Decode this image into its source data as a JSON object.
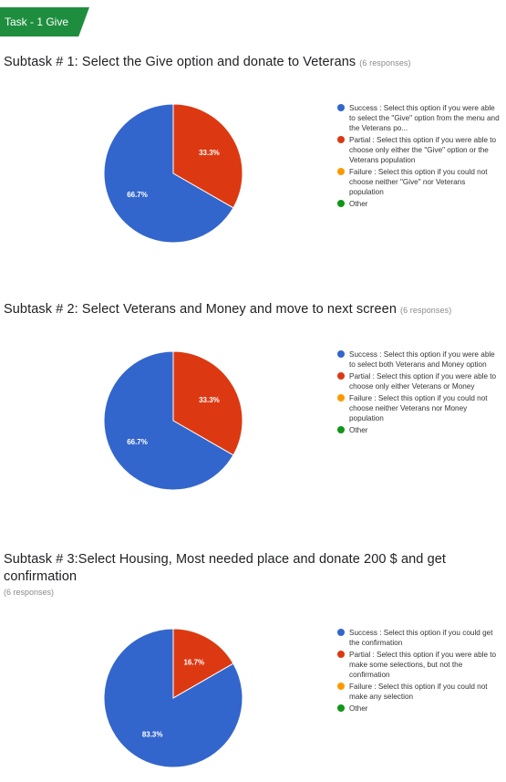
{
  "task_tag": "Task - 1 Give",
  "legend_colors": {
    "success": "#3366cc",
    "partial": "#dc3912",
    "failure": "#ff9900",
    "other": "#109618"
  },
  "chart_data": [
    {
      "type": "pie",
      "title": "Subtask # 1: Select the Give option and donate to Veterans",
      "responses": "(6 responses)",
      "slices": [
        {
          "label": "Success : Select this option if you were able to select the \"Give\" option from the menu and the Veterans po...",
          "value": 66.7,
          "display": "66.7%",
          "color": "#3366cc"
        },
        {
          "label": "Partial : Select this option if you were able to choose only either the \"Give\" option or the Veterans population",
          "value": 33.3,
          "display": "33.3%",
          "color": "#dc3912"
        },
        {
          "label": "Failure : Select this option if you could not choose neither \"Give\" nor Veterans population",
          "value": 0,
          "display": "",
          "color": "#ff9900"
        },
        {
          "label": "Other",
          "value": 0,
          "display": "",
          "color": "#109618"
        }
      ]
    },
    {
      "type": "pie",
      "title": "Subtask # 2: Select Veterans and Money and move to next screen",
      "responses": "(6 responses)",
      "slices": [
        {
          "label": "Success : Select this option if you were able to select both Veterans and Money option",
          "value": 66.7,
          "display": "66.7%",
          "color": "#3366cc"
        },
        {
          "label": "Partial : Select this option if you were able to choose only either Veterans or Money",
          "value": 33.3,
          "display": "33.3%",
          "color": "#dc3912"
        },
        {
          "label": "Failure : Select this option if you could not choose neither Veterans nor Money population",
          "value": 0,
          "display": "",
          "color": "#ff9900"
        },
        {
          "label": "Other",
          "value": 0,
          "display": "",
          "color": "#109618"
        }
      ]
    },
    {
      "type": "pie",
      "title": "Subtask # 3:Select Housing, Most needed place and donate 200 $ and get confirmation",
      "responses": "(6 responses)",
      "slices": [
        {
          "label": "Success : Select this option if you could get the confirmation",
          "value": 83.3,
          "display": "83.3%",
          "color": "#3366cc"
        },
        {
          "label": "Partial : Select this option if you were able to make some selections, but not the confirmation",
          "value": 16.7,
          "display": "16.7%",
          "color": "#dc3912"
        },
        {
          "label": "Failure : Select this option if you could not make any selection",
          "value": 0,
          "display": "",
          "color": "#ff9900"
        },
        {
          "label": "Other",
          "value": 0,
          "display": "",
          "color": "#109618"
        }
      ]
    }
  ]
}
